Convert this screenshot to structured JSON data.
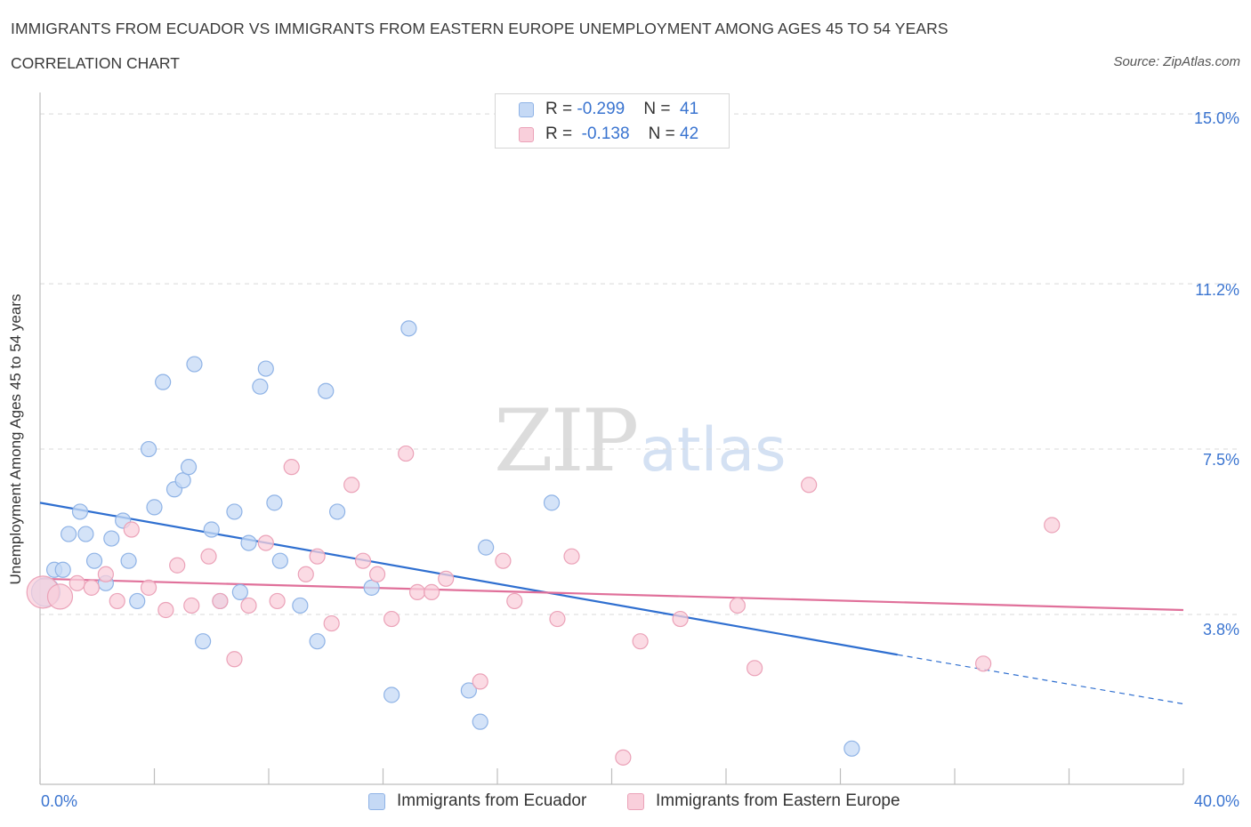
{
  "header": {
    "title": "IMMIGRANTS FROM ECUADOR VS IMMIGRANTS FROM EASTERN EUROPE UNEMPLOYMENT AMONG AGES 45 TO 54 YEARS",
    "subtitle": "CORRELATION CHART",
    "source": "Source: ZipAtlas.com"
  },
  "watermark": {
    "zip": "ZIP",
    "atlas": "atlas"
  },
  "legend": {
    "rows": [
      {
        "r_label": "R = ",
        "r_value": "-0.299",
        "n_label": "N = ",
        "n_value": "41",
        "color": "#a9c8f0"
      },
      {
        "r_label": "R = ",
        "r_value": "-0.138",
        "n_label": "N = ",
        "n_value": "42",
        "color": "#f6b7c9"
      }
    ]
  },
  "colors": {
    "series1_fill": "#c5d9f5",
    "series1_stroke": "#8fb3e6",
    "series1_line": "#2f6fd0",
    "series2_fill": "#f9cfdb",
    "series2_stroke": "#eba2b8",
    "series2_line": "#e0709a",
    "grid": "#d9d9d9",
    "tick_label": "#3a74d0"
  },
  "chart_data": {
    "type": "scatter",
    "title": "IMMIGRANTS FROM ECUADOR VS IMMIGRANTS FROM EASTERN EUROPE UNEMPLOYMENT AMONG AGES 45 TO 54 YEARS",
    "subtitle": "CORRELATION CHART",
    "xlabel": "",
    "ylabel": "Unemployment Among Ages 45 to 54 years",
    "xlim": [
      0,
      40
    ],
    "ylim": [
      0,
      15.4
    ],
    "x_ticks": [
      "0.0%",
      "40.0%"
    ],
    "y_ticks": [
      {
        "value": 3.8,
        "label": "3.8%"
      },
      {
        "value": 7.5,
        "label": "7.5%"
      },
      {
        "value": 11.2,
        "label": "11.2%"
      },
      {
        "value": 15.0,
        "label": "15.0%"
      }
    ],
    "grid": "horizontal dashed",
    "legend_position": "top-center",
    "series": [
      {
        "name": "Immigrants from Ecuador",
        "R": -0.299,
        "N": 41,
        "points": [
          [
            0.2,
            4.3
          ],
          [
            0.5,
            4.8
          ],
          [
            0.8,
            4.8
          ],
          [
            1.0,
            5.6
          ],
          [
            1.4,
            6.1
          ],
          [
            1.6,
            5.6
          ],
          [
            1.9,
            5.0
          ],
          [
            2.3,
            4.5
          ],
          [
            2.5,
            5.5
          ],
          [
            2.9,
            5.9
          ],
          [
            3.1,
            5.0
          ],
          [
            3.4,
            4.1
          ],
          [
            3.8,
            7.5
          ],
          [
            4.0,
            6.2
          ],
          [
            4.3,
            9.0
          ],
          [
            4.7,
            6.6
          ],
          [
            5.0,
            6.8
          ],
          [
            5.2,
            7.1
          ],
          [
            5.4,
            9.4
          ],
          [
            5.7,
            3.2
          ],
          [
            6.0,
            5.7
          ],
          [
            6.3,
            4.1
          ],
          [
            6.8,
            6.1
          ],
          [
            7.0,
            4.3
          ],
          [
            7.3,
            5.4
          ],
          [
            7.7,
            8.9
          ],
          [
            7.9,
            9.3
          ],
          [
            8.2,
            6.3
          ],
          [
            8.4,
            5.0
          ],
          [
            9.1,
            4.0
          ],
          [
            9.7,
            3.2
          ],
          [
            10.0,
            8.8
          ],
          [
            10.4,
            6.1
          ],
          [
            11.6,
            4.4
          ],
          [
            12.3,
            2.0
          ],
          [
            12.9,
            10.2
          ],
          [
            15.0,
            2.1
          ],
          [
            15.4,
            1.4
          ],
          [
            15.6,
            5.3
          ],
          [
            17.9,
            6.3
          ],
          [
            28.4,
            0.8
          ]
        ],
        "trend": {
          "x0": 0,
          "y0": 6.3,
          "x1": 30.0,
          "y1": 2.9,
          "dashed_to_x": 40,
          "dashed_to_y": 1.8
        }
      },
      {
        "name": "Immigrants from Eastern Europe",
        "R": -0.138,
        "N": 42,
        "points": [
          [
            0.1,
            4.3
          ],
          [
            0.7,
            4.2
          ],
          [
            1.3,
            4.5
          ],
          [
            1.8,
            4.4
          ],
          [
            2.3,
            4.7
          ],
          [
            2.7,
            4.1
          ],
          [
            3.2,
            5.7
          ],
          [
            3.8,
            4.4
          ],
          [
            4.4,
            3.9
          ],
          [
            4.8,
            4.9
          ],
          [
            5.3,
            4.0
          ],
          [
            5.9,
            5.1
          ],
          [
            6.3,
            4.1
          ],
          [
            6.8,
            2.8
          ],
          [
            7.3,
            4.0
          ],
          [
            7.9,
            5.4
          ],
          [
            8.3,
            4.1
          ],
          [
            8.8,
            7.1
          ],
          [
            9.3,
            4.7
          ],
          [
            9.7,
            5.1
          ],
          [
            10.2,
            3.6
          ],
          [
            10.9,
            6.7
          ],
          [
            11.3,
            5.0
          ],
          [
            11.8,
            4.7
          ],
          [
            12.3,
            3.7
          ],
          [
            12.8,
            7.4
          ],
          [
            13.2,
            4.3
          ],
          [
            13.7,
            4.3
          ],
          [
            14.2,
            4.6
          ],
          [
            15.4,
            2.3
          ],
          [
            16.2,
            5.0
          ],
          [
            16.6,
            4.1
          ],
          [
            18.1,
            3.7
          ],
          [
            18.6,
            5.1
          ],
          [
            20.4,
            0.6
          ],
          [
            21.0,
            3.2
          ],
          [
            22.4,
            3.7
          ],
          [
            24.4,
            4.0
          ],
          [
            25.0,
            2.6
          ],
          [
            26.9,
            6.7
          ],
          [
            33.0,
            2.7
          ],
          [
            35.4,
            5.8
          ]
        ],
        "trend": {
          "x0": 0,
          "y0": 4.6,
          "x1": 40,
          "y1": 3.9
        }
      }
    ]
  },
  "axis_labels": {
    "y_ticks": [
      "15.0%",
      "11.2%",
      "7.5%",
      "3.8%"
    ],
    "x_left": "0.0%",
    "x_right": "40.0%",
    "ylabel": "Unemployment Among Ages 45 to 54 years"
  },
  "bottom_legend": {
    "items": [
      {
        "label": "Immigrants from Ecuador"
      },
      {
        "label": "Immigrants from Eastern Europe"
      }
    ]
  }
}
